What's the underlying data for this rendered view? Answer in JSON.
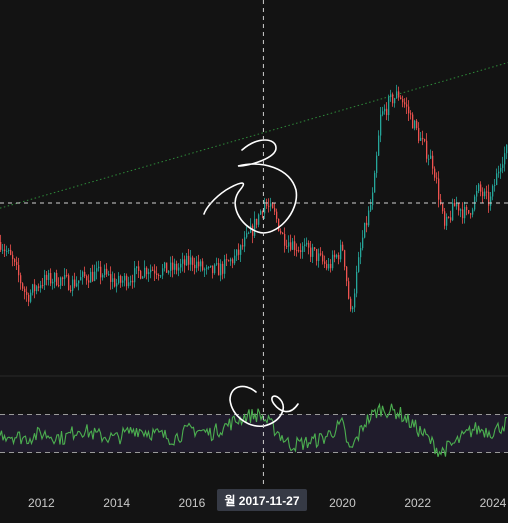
{
  "chart_data": {
    "type": "line",
    "title": "",
    "main_panel": {
      "kind": "candlestick",
      "x_unit": "year",
      "xlim": [
        2010.9,
        2024.4
      ],
      "ylim": [
        0,
        100
      ],
      "y_scale_visible": false,
      "price_path": [
        [
          2010.9,
          40
        ],
        [
          2011.2,
          33
        ],
        [
          2011.6,
          19
        ],
        [
          2012.0,
          25
        ],
        [
          2012.4,
          26
        ],
        [
          2012.8,
          24
        ],
        [
          2013.2,
          27
        ],
        [
          2013.6,
          28
        ],
        [
          2014.0,
          24
        ],
        [
          2014.4,
          27
        ],
        [
          2014.8,
          30
        ],
        [
          2015.2,
          29
        ],
        [
          2015.6,
          30
        ],
        [
          2016.0,
          33
        ],
        [
          2016.4,
          28
        ],
        [
          2016.8,
          30
        ],
        [
          2017.2,
          35
        ],
        [
          2017.6,
          45
        ],
        [
          2017.9,
          55
        ],
        [
          2018.2,
          50
        ],
        [
          2018.4,
          42
        ],
        [
          2018.8,
          38
        ],
        [
          2019.2,
          36
        ],
        [
          2019.6,
          30
        ],
        [
          2020.0,
          38
        ],
        [
          2020.2,
          12
        ],
        [
          2020.5,
          40
        ],
        [
          2020.8,
          58
        ],
        [
          2021.0,
          88
        ],
        [
          2021.3,
          95
        ],
        [
          2021.5,
          97
        ],
        [
          2021.8,
          88
        ],
        [
          2022.1,
          78
        ],
        [
          2022.4,
          70
        ],
        [
          2022.7,
          45
        ],
        [
          2023.0,
          55
        ],
        [
          2023.3,
          50
        ],
        [
          2023.6,
          60
        ],
        [
          2023.9,
          55
        ],
        [
          2024.2,
          72
        ],
        [
          2024.4,
          76
        ]
      ],
      "trendline": {
        "from": [
          2010.9,
          53
        ],
        "to": [
          2024.4,
          109
        ],
        "color": "#2e8b3a",
        "style": "dotted"
      },
      "up_color": "#26a69a",
      "down_color": "#ef5350",
      "grid": false
    },
    "indicator_panel": {
      "kind": "oscillator",
      "ylim": [
        0,
        100
      ],
      "upper_band": 70,
      "lower_band": 30,
      "band_fill": "#201c2c",
      "line_color": "#4caf50",
      "values_path": [
        [
          2010.9,
          50
        ],
        [
          2011.6,
          45
        ],
        [
          2012.0,
          50
        ],
        [
          2012.6,
          45
        ],
        [
          2013.0,
          55
        ],
        [
          2013.5,
          48
        ],
        [
          2014.0,
          45
        ],
        [
          2014.5,
          55
        ],
        [
          2015.0,
          50
        ],
        [
          2015.5,
          45
        ],
        [
          2016.0,
          55
        ],
        [
          2016.5,
          50
        ],
        [
          2017.0,
          60
        ],
        [
          2017.4,
          68
        ],
        [
          2017.8,
          70
        ],
        [
          2018.2,
          55
        ],
        [
          2018.6,
          38
        ],
        [
          2019.0,
          40
        ],
        [
          2019.5,
          45
        ],
        [
          2020.0,
          60
        ],
        [
          2020.2,
          30
        ],
        [
          2020.6,
          62
        ],
        [
          2021.0,
          76
        ],
        [
          2021.5,
          72
        ],
        [
          2021.9,
          58
        ],
        [
          2022.2,
          48
        ],
        [
          2022.6,
          30
        ],
        [
          2023.0,
          40
        ],
        [
          2023.5,
          55
        ],
        [
          2024.0,
          52
        ],
        [
          2024.4,
          62
        ]
      ]
    },
    "x_ticks": [
      {
        "label": "2012",
        "value": 2012
      },
      {
        "label": "2014",
        "value": 2014
      },
      {
        "label": "2016",
        "value": 2016
      },
      {
        "label": "2020",
        "value": 2020
      },
      {
        "label": "2022",
        "value": 2022
      },
      {
        "label": "2024",
        "value": 2024
      }
    ],
    "crosshair": {
      "x": 2017.9,
      "price": 55,
      "date_label": "월 2017-11-27"
    }
  },
  "colors": {
    "background": "#131313",
    "tick_text": "#c9c9c9",
    "crosshair": "#d0d0d0",
    "annotation": "#ffffff",
    "tag_background": "#363a45"
  }
}
